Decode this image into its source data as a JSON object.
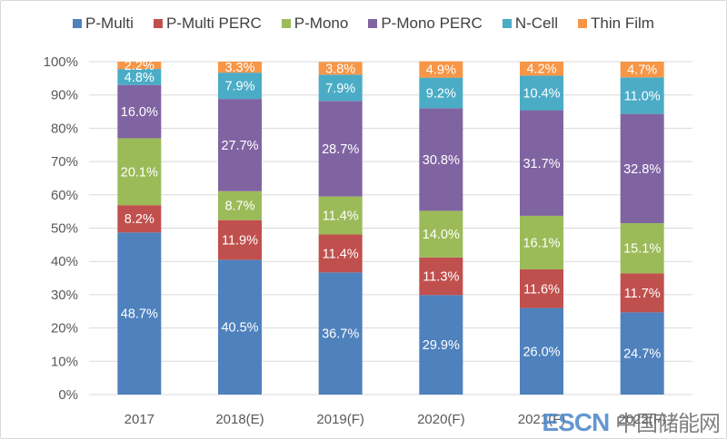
{
  "chart_data": {
    "type": "bar",
    "stacked": true,
    "title": "",
    "xlabel": "",
    "ylabel": "",
    "ylim": [
      0,
      100
    ],
    "yticks": [
      "0%",
      "10%",
      "20%",
      "30%",
      "40%",
      "50%",
      "60%",
      "70%",
      "80%",
      "90%",
      "100%"
    ],
    "grid": true,
    "legend_position": "top",
    "categories": [
      "2017",
      "2018(E)",
      "2019(F)",
      "2020(F)",
      "2021(F)",
      "2022(F)"
    ],
    "series": [
      {
        "name": "P-Multi",
        "color": "#4f81bd",
        "values": [
          48.7,
          40.5,
          36.7,
          29.9,
          26.0,
          24.7
        ]
      },
      {
        "name": "P-Multi PERC",
        "color": "#c0504d",
        "values": [
          8.2,
          11.9,
          11.4,
          11.3,
          11.6,
          11.7
        ]
      },
      {
        "name": "P-Mono",
        "color": "#9bbb59",
        "values": [
          20.1,
          8.7,
          11.4,
          14.0,
          16.1,
          15.1
        ]
      },
      {
        "name": "P-Mono PERC",
        "color": "#8064a2",
        "values": [
          16.0,
          27.7,
          28.7,
          30.8,
          31.7,
          32.8
        ]
      },
      {
        "name": "N-Cell",
        "color": "#4bacc6",
        "values": [
          4.8,
          7.9,
          7.9,
          9.2,
          10.4,
          11.0
        ]
      },
      {
        "name": "Thin Film",
        "color": "#f79646",
        "values": [
          2.2,
          3.3,
          3.8,
          4.9,
          4.2,
          4.7
        ]
      }
    ]
  },
  "watermark": {
    "latin": "ESCN",
    "cjk": "中国储能网"
  }
}
